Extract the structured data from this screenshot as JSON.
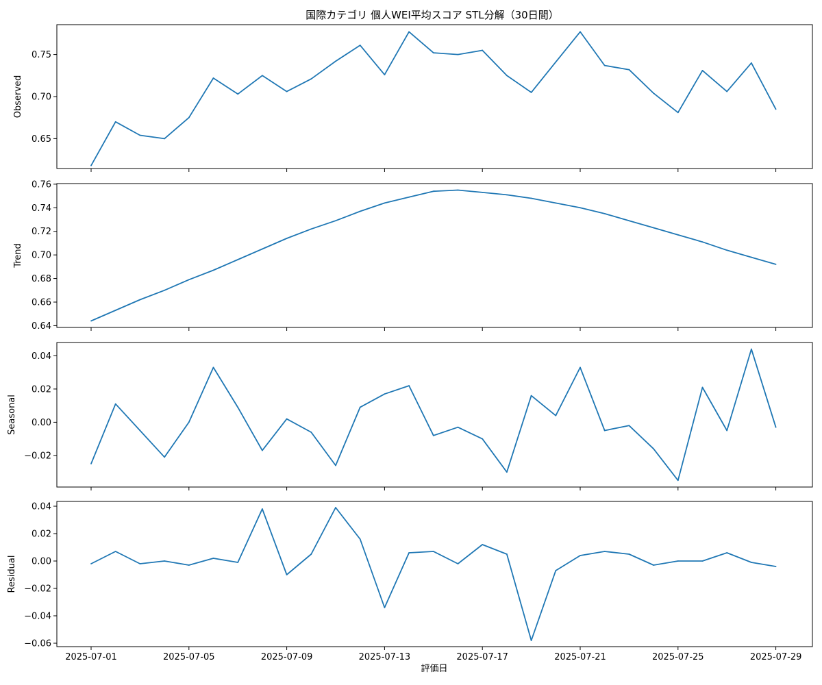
{
  "figure": {
    "title": "国際カテゴリ 個人WEI平均スコア STL分解（30日間）",
    "xlabel": "評価日",
    "line_color": "#1f77b4",
    "x_tick_labels": [
      "2025-07-01",
      "2025-07-05",
      "2025-07-09",
      "2025-07-13",
      "2025-07-17",
      "2025-07-21",
      "2025-07-25",
      "2025-07-29"
    ]
  },
  "chart_data": [
    {
      "type": "line",
      "ylabel": "Observed",
      "x": [
        "2025-07-01",
        "2025-07-02",
        "2025-07-03",
        "2025-07-04",
        "2025-07-05",
        "2025-07-06",
        "2025-07-07",
        "2025-07-08",
        "2025-07-09",
        "2025-07-10",
        "2025-07-11",
        "2025-07-12",
        "2025-07-13",
        "2025-07-14",
        "2025-07-15",
        "2025-07-16",
        "2025-07-17",
        "2025-07-18",
        "2025-07-19",
        "2025-07-20",
        "2025-07-21",
        "2025-07-22",
        "2025-07-23",
        "2025-07-24",
        "2025-07-25",
        "2025-07-26",
        "2025-07-27",
        "2025-07-28",
        "2025-07-29"
      ],
      "values": [
        0.618,
        0.67,
        0.654,
        0.65,
        0.675,
        0.722,
        0.703,
        0.725,
        0.706,
        0.721,
        0.742,
        0.761,
        0.726,
        0.777,
        0.752,
        0.75,
        0.755,
        0.725,
        0.705,
        0.741,
        0.777,
        0.737,
        0.732,
        0.704,
        0.681,
        0.731,
        0.706,
        0.74,
        0.685
      ],
      "ylim": [
        0.6145,
        0.7855
      ],
      "y_ticks": [
        0.65,
        0.7,
        0.75
      ],
      "y_tick_labels": [
        "0.65",
        "0.70",
        "0.75"
      ]
    },
    {
      "type": "line",
      "ylabel": "Trend",
      "x": [
        "2025-07-01",
        "2025-07-02",
        "2025-07-03",
        "2025-07-04",
        "2025-07-05",
        "2025-07-06",
        "2025-07-07",
        "2025-07-08",
        "2025-07-09",
        "2025-07-10",
        "2025-07-11",
        "2025-07-12",
        "2025-07-13",
        "2025-07-14",
        "2025-07-15",
        "2025-07-16",
        "2025-07-17",
        "2025-07-18",
        "2025-07-19",
        "2025-07-20",
        "2025-07-21",
        "2025-07-22",
        "2025-07-23",
        "2025-07-24",
        "2025-07-25",
        "2025-07-26",
        "2025-07-27",
        "2025-07-28",
        "2025-07-29"
      ],
      "values": [
        0.644,
        0.653,
        0.662,
        0.67,
        0.679,
        0.687,
        0.696,
        0.705,
        0.714,
        0.722,
        0.729,
        0.737,
        0.744,
        0.749,
        0.754,
        0.755,
        0.753,
        0.751,
        0.748,
        0.744,
        0.74,
        0.735,
        0.729,
        0.723,
        0.717,
        0.711,
        0.704,
        0.698,
        0.692
      ],
      "ylim": [
        0.6385,
        0.7605
      ],
      "y_ticks": [
        0.64,
        0.66,
        0.68,
        0.7,
        0.72,
        0.74,
        0.76
      ],
      "y_tick_labels": [
        "0.64",
        "0.66",
        "0.68",
        "0.70",
        "0.72",
        "0.74",
        "0.76"
      ]
    },
    {
      "type": "line",
      "ylabel": "Seasonal",
      "x": [
        "2025-07-01",
        "2025-07-02",
        "2025-07-03",
        "2025-07-04",
        "2025-07-05",
        "2025-07-06",
        "2025-07-07",
        "2025-07-08",
        "2025-07-09",
        "2025-07-10",
        "2025-07-11",
        "2025-07-12",
        "2025-07-13",
        "2025-07-14",
        "2025-07-15",
        "2025-07-16",
        "2025-07-17",
        "2025-07-18",
        "2025-07-19",
        "2025-07-20",
        "2025-07-21",
        "2025-07-22",
        "2025-07-23",
        "2025-07-24",
        "2025-07-25",
        "2025-07-26",
        "2025-07-27",
        "2025-07-28",
        "2025-07-29"
      ],
      "values": [
        -0.025,
        0.011,
        -0.005,
        -0.021,
        0.0,
        0.033,
        0.009,
        -0.017,
        0.002,
        -0.006,
        -0.026,
        0.009,
        0.017,
        0.022,
        -0.008,
        -0.003,
        -0.01,
        -0.03,
        0.016,
        0.004,
        0.033,
        -0.005,
        -0.002,
        -0.016,
        -0.035,
        0.021,
        -0.005,
        0.044,
        -0.003
      ],
      "ylim": [
        -0.039,
        0.048
      ],
      "y_ticks": [
        -0.02,
        0.0,
        0.02,
        0.04
      ],
      "y_tick_labels": [
        "−0.02",
        "0.00",
        "0.02",
        "0.04"
      ]
    },
    {
      "type": "line",
      "ylabel": "Residual",
      "x": [
        "2025-07-01",
        "2025-07-02",
        "2025-07-03",
        "2025-07-04",
        "2025-07-05",
        "2025-07-06",
        "2025-07-07",
        "2025-07-08",
        "2025-07-09",
        "2025-07-10",
        "2025-07-11",
        "2025-07-12",
        "2025-07-13",
        "2025-07-14",
        "2025-07-15",
        "2025-07-16",
        "2025-07-17",
        "2025-07-18",
        "2025-07-19",
        "2025-07-20",
        "2025-07-21",
        "2025-07-22",
        "2025-07-23",
        "2025-07-24",
        "2025-07-25",
        "2025-07-26",
        "2025-07-27",
        "2025-07-28",
        "2025-07-29"
      ],
      "values": [
        -0.002,
        0.007,
        -0.002,
        0.0,
        -0.003,
        0.002,
        -0.001,
        0.038,
        -0.01,
        0.005,
        0.039,
        0.016,
        -0.034,
        0.006,
        0.007,
        -0.002,
        0.012,
        0.005,
        -0.058,
        -0.007,
        0.004,
        0.007,
        0.005,
        -0.003,
        0.0,
        0.0,
        0.006,
        -0.001,
        -0.004
      ],
      "ylim": [
        -0.0625,
        0.0435
      ],
      "y_ticks": [
        -0.06,
        -0.04,
        -0.02,
        0.0,
        0.02,
        0.04
      ],
      "y_tick_labels": [
        "−0.06",
        "−0.04",
        "−0.02",
        "0.00",
        "0.02",
        "0.04"
      ]
    }
  ]
}
